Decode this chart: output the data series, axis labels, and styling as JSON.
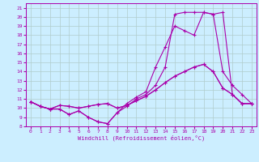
{
  "xlabel": "Windchill (Refroidissement éolien,°C)",
  "bg_color": "#cceeff",
  "grid_color": "#b0cccc",
  "line_color": "#aa00aa",
  "xlim": [
    -0.5,
    23.5
  ],
  "ylim": [
    8,
    21.5
  ],
  "xticks": [
    0,
    1,
    2,
    3,
    4,
    5,
    6,
    7,
    8,
    9,
    10,
    11,
    12,
    13,
    14,
    15,
    16,
    17,
    18,
    19,
    20,
    21,
    22,
    23
  ],
  "yticks": [
    8,
    9,
    10,
    11,
    12,
    13,
    14,
    15,
    16,
    17,
    18,
    19,
    20,
    21
  ],
  "line1_x": [
    0,
    1,
    2,
    3,
    4,
    5,
    6,
    7,
    8,
    9,
    10,
    11,
    12,
    13,
    14,
    15,
    16,
    17,
    18,
    19,
    20,
    21,
    22,
    23
  ],
  "line1_y": [
    10.7,
    10.2,
    9.9,
    9.9,
    9.3,
    9.7,
    9.0,
    8.5,
    8.3,
    9.5,
    10.5,
    11.2,
    11.8,
    14.5,
    16.7,
    19.0,
    18.5,
    18.0,
    20.5,
    20.3,
    14.0,
    12.5,
    11.5,
    10.5
  ],
  "line2_x": [
    0,
    1,
    2,
    3,
    4,
    5,
    6,
    7,
    8,
    9,
    10,
    11,
    12,
    13,
    14,
    15,
    16,
    17,
    18,
    19,
    20,
    21,
    22,
    23
  ],
  "line2_y": [
    10.7,
    10.2,
    9.9,
    9.9,
    9.3,
    9.7,
    9.0,
    8.5,
    8.3,
    9.5,
    10.2,
    11.0,
    11.5,
    12.5,
    14.5,
    20.3,
    20.5,
    20.5,
    20.5,
    20.3,
    20.5,
    11.5,
    10.5,
    10.5
  ],
  "line3_x": [
    0,
    1,
    2,
    3,
    4,
    5,
    6,
    7,
    8,
    9,
    10,
    11,
    12,
    13,
    14,
    15,
    16,
    17,
    18,
    19,
    20,
    21,
    22,
    23
  ],
  "line3_y": [
    10.7,
    10.2,
    9.9,
    10.3,
    10.2,
    10.0,
    10.2,
    10.4,
    10.5,
    10.0,
    10.3,
    10.8,
    11.3,
    12.0,
    12.8,
    13.5,
    14.0,
    14.5,
    14.8,
    14.0,
    12.2,
    11.5,
    10.5,
    10.5
  ],
  "line4_x": [
    0,
    1,
    2,
    3,
    4,
    5,
    6,
    7,
    8,
    9,
    10,
    11,
    12,
    13,
    14,
    15,
    16,
    17,
    18,
    19,
    20,
    21,
    22,
    23
  ],
  "line4_y": [
    10.7,
    10.2,
    9.9,
    10.3,
    10.2,
    10.0,
    10.2,
    10.4,
    10.5,
    10.0,
    10.3,
    10.8,
    11.3,
    12.0,
    12.8,
    13.5,
    14.0,
    14.5,
    14.8,
    14.0,
    12.2,
    11.5,
    10.5,
    10.5
  ]
}
